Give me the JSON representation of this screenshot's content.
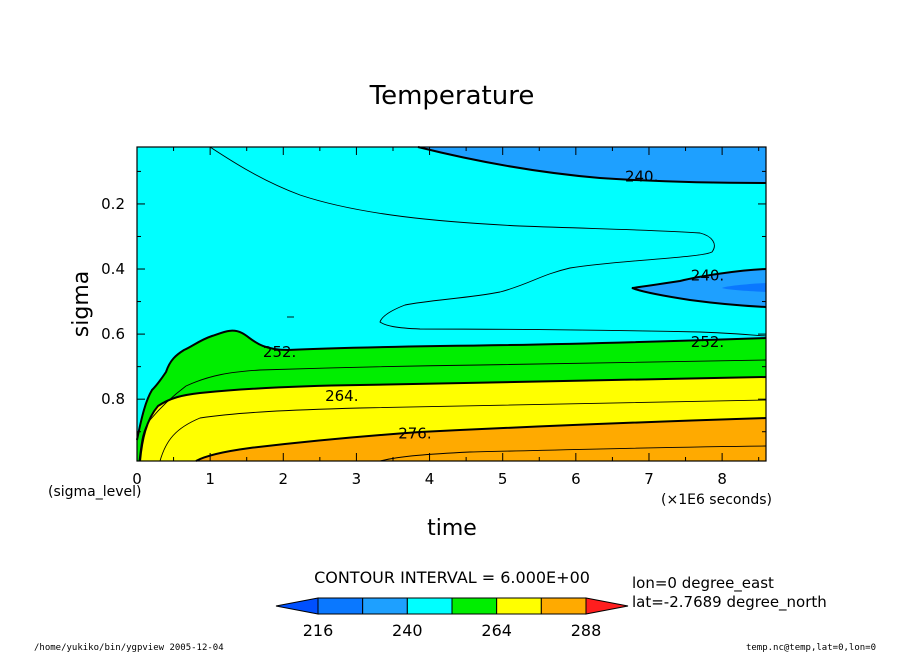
{
  "chart_data": {
    "type": "heatmap",
    "title": "Temperature",
    "xlabel": "time",
    "ylabel": "sigma",
    "x_unit_note": "(×1E6 seconds)",
    "y_unit_note": "(sigma_level)",
    "xlim": [
      0,
      8.6
    ],
    "ylim": [
      0.99,
      0.025
    ],
    "x_ticks": [
      0,
      1,
      2,
      3,
      4,
      5,
      6,
      7,
      8
    ],
    "x_tick_labels": [
      "0",
      "1",
      "2",
      "3",
      "4",
      "5",
      "6",
      "7",
      "8"
    ],
    "y_ticks": [
      0.2,
      0.4,
      0.6,
      0.8
    ],
    "y_tick_labels": [
      "0.2",
      "0.4",
      "0.6",
      "0.8"
    ],
    "contour_labels": [
      {
        "text": "240.",
        "x": 6.9,
        "y": 0.115
      },
      {
        "text": "240.",
        "x": 7.8,
        "y": 0.42
      },
      {
        "text": "252.",
        "x": 7.8,
        "y": 0.625
      },
      {
        "text": "252.",
        "x": 1.95,
        "y": 0.655
      },
      {
        "text": "264.",
        "x": 2.8,
        "y": 0.79
      },
      {
        "text": "276.",
        "x": 3.8,
        "y": 0.905
      }
    ],
    "contour_interval_text": "CONTOUR INTERVAL = 6.000E+00",
    "colorbar": {
      "levels": [
        216,
        228,
        240,
        252,
        264,
        276,
        288
      ],
      "tick_labels": [
        "216",
        "240",
        "264",
        "288"
      ],
      "colors": [
        "#0050ff",
        "#0a78ff",
        "#1ea0ff",
        "#00ffff",
        "#00ee00",
        "#ffff00",
        "#ffaa00",
        "#ff1e1e"
      ]
    },
    "fill_colors": {
      "cold": "#1ea0ff",
      "cyan": "#00ffff",
      "green": "#00ee00",
      "yellow": "#ffff00",
      "orange": "#ffaa00"
    }
  },
  "annotations": {
    "lon": "lon=0 degree_east",
    "lat": "lat=-2.7689 degree_north",
    "footer_left": "/home/yukiko/bin/ygpview  2005-12-04",
    "footer_right": "temp.nc@temp,lat=0,lon=0"
  }
}
